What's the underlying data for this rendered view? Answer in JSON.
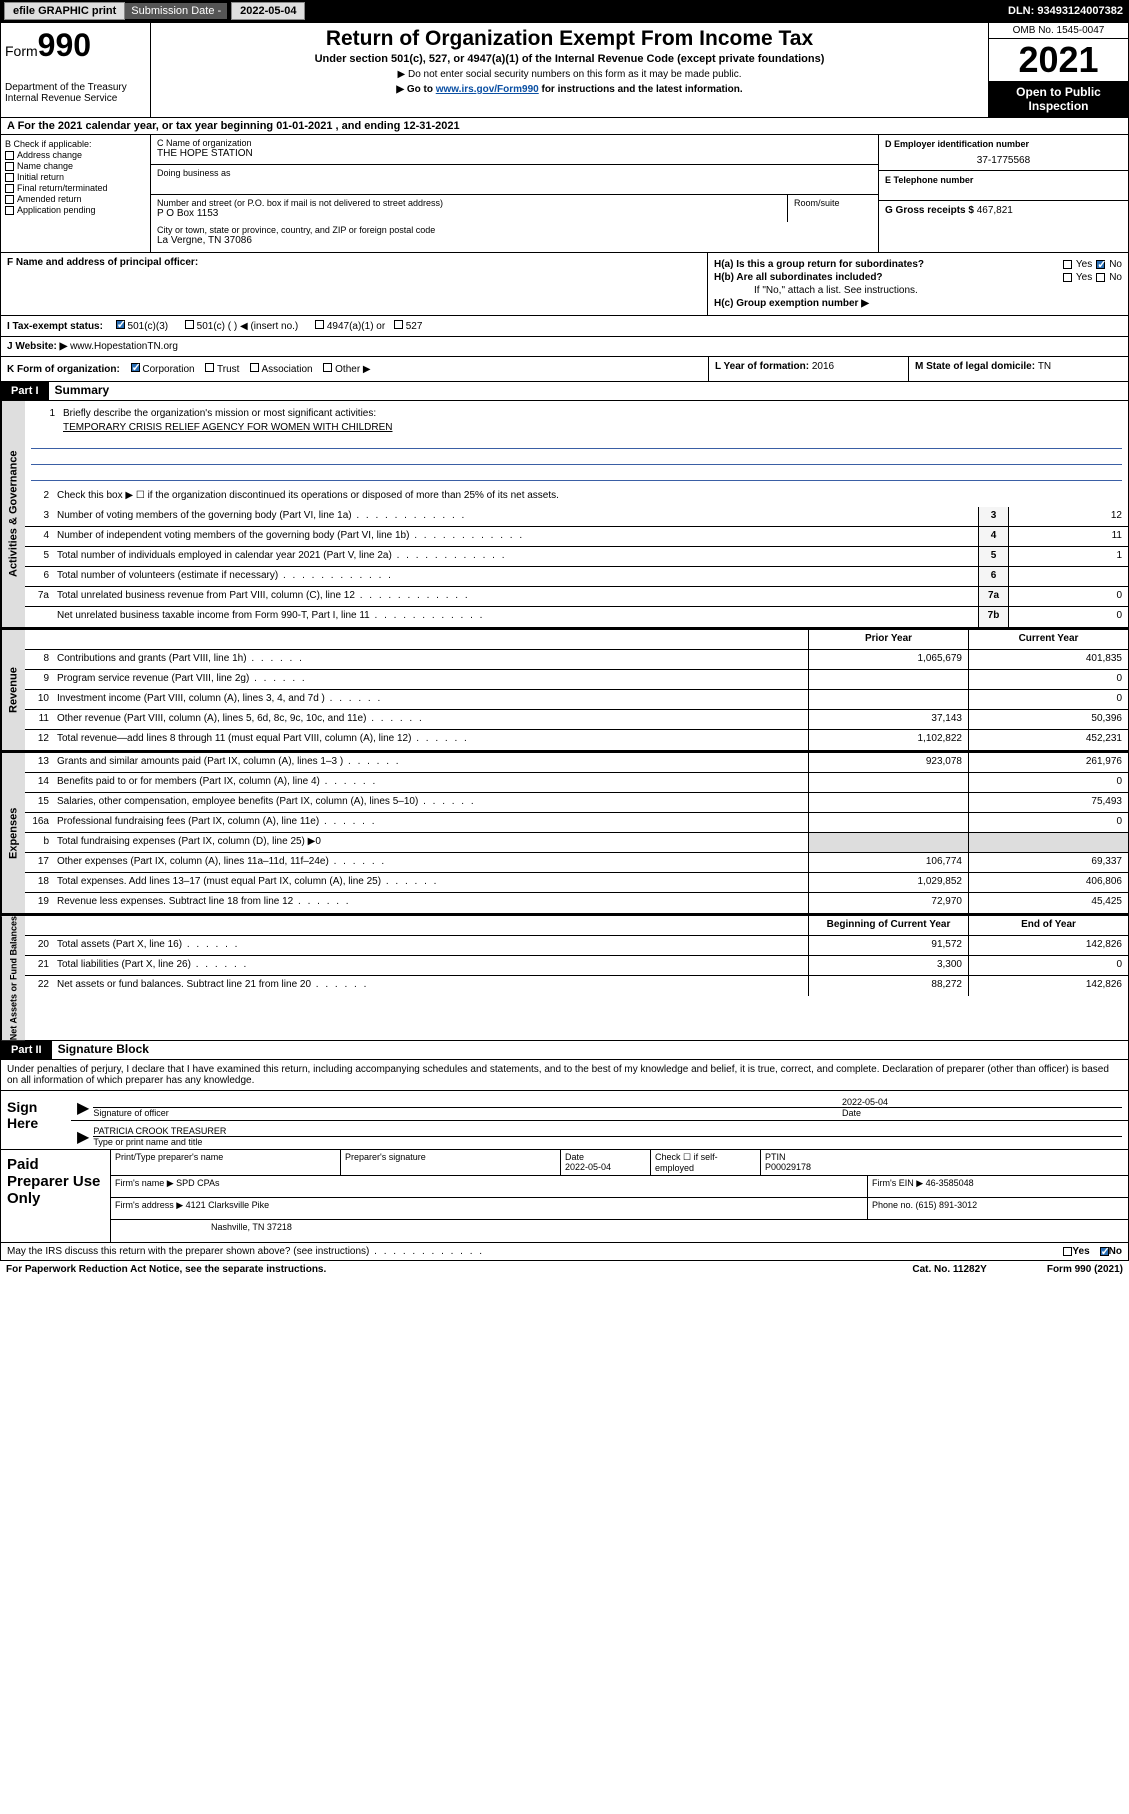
{
  "topbar": {
    "efile": "efile GRAPHIC print",
    "submission_label": "Submission Date - ",
    "submission_date": "2022-05-04",
    "dln_label": "DLN: ",
    "dln": "93493124007382"
  },
  "header": {
    "form_prefix": "Form",
    "form_number": "990",
    "dept": "Department of the Treasury\nInternal Revenue Service",
    "title": "Return of Organization Exempt From Income Tax",
    "subtitle": "Under section 501(c), 527, or 4947(a)(1) of the Internal Revenue Code (except private foundations)",
    "note1": "▶ Do not enter social security numbers on this form as it may be made public.",
    "note2_pre": "▶ Go to ",
    "note2_link": "www.irs.gov/Form990",
    "note2_post": " for instructions and the latest information.",
    "omb": "OMB No. 1545-0047",
    "year": "2021",
    "inspection": "Open to Public Inspection"
  },
  "row_a": "A For the 2021 calendar year, or tax year beginning 01-01-2021   , and ending 12-31-2021",
  "section_b": {
    "header": "B Check if applicable:",
    "items": [
      "Address change",
      "Name change",
      "Initial return",
      "Final return/terminated",
      "Amended return",
      "Application pending"
    ]
  },
  "section_c": {
    "name_label": "C Name of organization",
    "name": "THE HOPE STATION",
    "dba_label": "Doing business as",
    "addr_label": "Number and street (or P.O. box if mail is not delivered to street address)",
    "addr": "P O Box 1153",
    "room_label": "Room/suite",
    "city_label": "City or town, state or province, country, and ZIP or foreign postal code",
    "city": "La Vergne, TN  37086"
  },
  "section_d": {
    "label": "D Employer identification number",
    "value": "37-1775568"
  },
  "section_e": {
    "label": "E Telephone number",
    "value": ""
  },
  "section_g": {
    "label": "G Gross receipts $ ",
    "value": "467,821"
  },
  "section_f": {
    "label": "F  Name and address of principal officer:"
  },
  "section_h": {
    "a_label": "H(a)  Is this a group return for subordinates?",
    "b_label": "H(b)  Are all subordinates included?",
    "b_note": "If \"No,\" attach a list. See instructions.",
    "c_label": "H(c)  Group exemption number ▶",
    "yes": "Yes",
    "no": "No"
  },
  "section_i": {
    "label": "I   Tax-exempt status:",
    "opts": [
      "501(c)(3)",
      "501(c) (  ) ◀ (insert no.)",
      "4947(a)(1) or",
      "527"
    ]
  },
  "section_j": {
    "label": "J   Website: ▶ ",
    "value": "www.HopestationTN.org"
  },
  "section_k": {
    "label": "K Form of organization:",
    "opts": [
      "Corporation",
      "Trust",
      "Association",
      "Other ▶"
    ]
  },
  "section_l": {
    "label": "L Year of formation: ",
    "value": "2016"
  },
  "section_m": {
    "label": "M State of legal domicile: ",
    "value": "TN"
  },
  "part1": {
    "label": "Part I",
    "title": "Summary",
    "q1_label": "1",
    "q1_text": "Briefly describe the organization's mission or most significant activities:",
    "q1_value": "TEMPORARY CRISIS RELIEF AGENCY FOR WOMEN WITH CHILDREN",
    "q2": "Check this box ▶ ☐  if the organization discontinued its operations or disposed of more than 25% of its net assets.",
    "rows_gov": [
      {
        "n": "3",
        "t": "Number of voting members of the governing body (Part VI, line 1a)",
        "box": "3",
        "v": "12"
      },
      {
        "n": "4",
        "t": "Number of independent voting members of the governing body (Part VI, line 1b)",
        "box": "4",
        "v": "11"
      },
      {
        "n": "5",
        "t": "Total number of individuals employed in calendar year 2021 (Part V, line 2a)",
        "box": "5",
        "v": "1"
      },
      {
        "n": "6",
        "t": "Total number of volunteers (estimate if necessary)",
        "box": "6",
        "v": ""
      },
      {
        "n": "7a",
        "t": "Total unrelated business revenue from Part VIII, column (C), line 12",
        "box": "7a",
        "v": "0"
      },
      {
        "n": "",
        "t": "Net unrelated business taxable income from Form 990-T, Part I, line 11",
        "box": "7b",
        "v": "0"
      }
    ],
    "col_prior": "Prior Year",
    "col_current": "Current Year",
    "rows_rev": [
      {
        "n": "8",
        "t": "Contributions and grants (Part VIII, line 1h)",
        "p": "1,065,679",
        "c": "401,835"
      },
      {
        "n": "9",
        "t": "Program service revenue (Part VIII, line 2g)",
        "p": "",
        "c": "0"
      },
      {
        "n": "10",
        "t": "Investment income (Part VIII, column (A), lines 3, 4, and 7d )",
        "p": "",
        "c": "0"
      },
      {
        "n": "11",
        "t": "Other revenue (Part VIII, column (A), lines 5, 6d, 8c, 9c, 10c, and 11e)",
        "p": "37,143",
        "c": "50,396"
      },
      {
        "n": "12",
        "t": "Total revenue—add lines 8 through 11 (must equal Part VIII, column (A), line 12)",
        "p": "1,102,822",
        "c": "452,231"
      }
    ],
    "rows_exp": [
      {
        "n": "13",
        "t": "Grants and similar amounts paid (Part IX, column (A), lines 1–3 )",
        "p": "923,078",
        "c": "261,976"
      },
      {
        "n": "14",
        "t": "Benefits paid to or for members (Part IX, column (A), line 4)",
        "p": "",
        "c": "0"
      },
      {
        "n": "15",
        "t": "Salaries, other compensation, employee benefits (Part IX, column (A), lines 5–10)",
        "p": "",
        "c": "75,493"
      },
      {
        "n": "16a",
        "t": "Professional fundraising fees (Part IX, column (A), line 11e)",
        "p": "",
        "c": "0"
      },
      {
        "n": "b",
        "t": "Total fundraising expenses (Part IX, column (D), line 25) ▶0",
        "p": "—",
        "c": "—"
      },
      {
        "n": "17",
        "t": "Other expenses (Part IX, column (A), lines 11a–11d, 11f–24e)",
        "p": "106,774",
        "c": "69,337"
      },
      {
        "n": "18",
        "t": "Total expenses. Add lines 13–17 (must equal Part IX, column (A), line 25)",
        "p": "1,029,852",
        "c": "406,806"
      },
      {
        "n": "19",
        "t": "Revenue less expenses. Subtract line 18 from line 12",
        "p": "72,970",
        "c": "45,425"
      }
    ],
    "col_begin": "Beginning of Current Year",
    "col_end": "End of Year",
    "rows_net": [
      {
        "n": "20",
        "t": "Total assets (Part X, line 16)",
        "p": "91,572",
        "c": "142,826"
      },
      {
        "n": "21",
        "t": "Total liabilities (Part X, line 26)",
        "p": "3,300",
        "c": "0"
      },
      {
        "n": "22",
        "t": "Net assets or fund balances. Subtract line 21 from line 20",
        "p": "88,272",
        "c": "142,826"
      }
    ]
  },
  "vtabs": {
    "gov": "Activities & Governance",
    "rev": "Revenue",
    "exp": "Expenses",
    "net": "Net Assets or Fund Balances"
  },
  "part2": {
    "label": "Part II",
    "title": "Signature Block",
    "declare": "Under penalties of perjury, I declare that I have examined this return, including accompanying schedules and statements, and to the best of my knowledge and belief, it is true, correct, and complete. Declaration of preparer (other than officer) is based on all information of which preparer has any knowledge.",
    "sign_here": "Sign Here",
    "sig_officer": "Signature of officer",
    "date": "Date",
    "date_val": "2022-05-04",
    "name_title": "PATRICIA CROOK  TREASURER",
    "name_title_label": "Type or print name and title"
  },
  "paid": {
    "label": "Paid Preparer Use Only",
    "h1": "Print/Type preparer's name",
    "h2": "Preparer's signature",
    "h3": "Date",
    "h3v": "2022-05-04",
    "h4": "Check ☐ if self-employed",
    "h5": "PTIN",
    "h5v": "P00029178",
    "firm_name_label": "Firm's name    ▶ ",
    "firm_name": "SPD CPAs",
    "firm_ein_label": "Firm's EIN ▶ ",
    "firm_ein": "46-3585048",
    "firm_addr_label": "Firm's address ▶ ",
    "firm_addr1": "4121 Clarksville Pike",
    "firm_addr2": "Nashville, TN  37218",
    "phone_label": "Phone no. ",
    "phone": "(615) 891-3012"
  },
  "footer": {
    "discuss": "May the IRS discuss this return with the preparer shown above? (see instructions)",
    "yes": "Yes",
    "no": "No",
    "paperwork": "For Paperwork Reduction Act Notice, see the separate instructions.",
    "cat": "Cat. No. 11282Y",
    "form": "Form 990 (2021)"
  }
}
